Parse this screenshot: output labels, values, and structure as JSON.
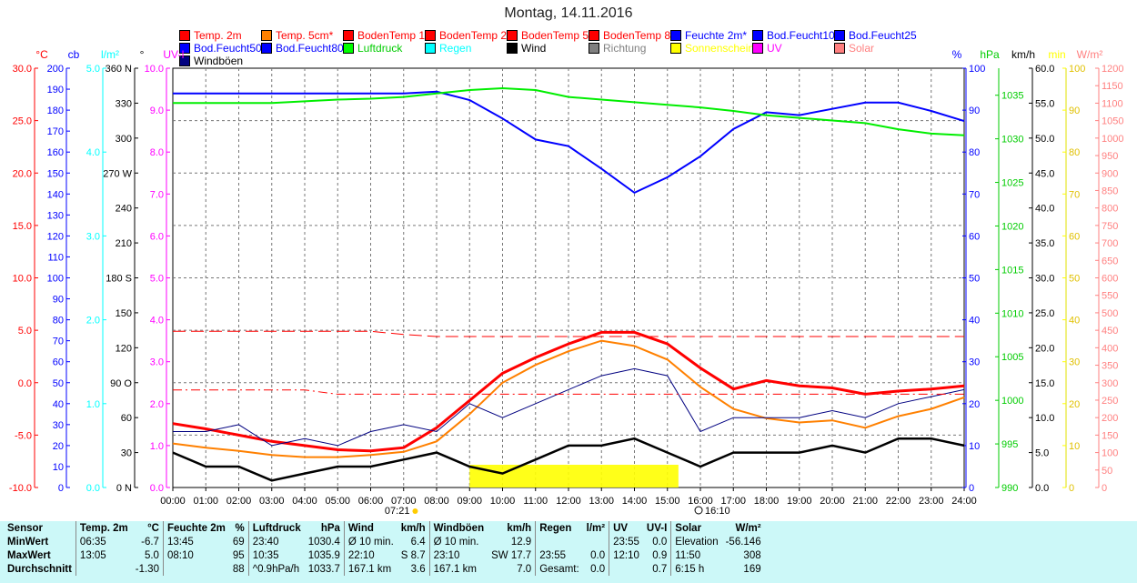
{
  "title": "Montag, 14.11.2016",
  "legend": [
    {
      "label": "Temp. 2m",
      "color": "#ff0000",
      "text": "#ff0000"
    },
    {
      "label": "Temp. 5cm*",
      "color": "#ff8000",
      "text": "#ff0000"
    },
    {
      "label": "BodenTemp 10",
      "color": "#ff0000",
      "text": "#ff0000"
    },
    {
      "label": "BodenTemp 25",
      "color": "#ff0000",
      "text": "#ff0000"
    },
    {
      "label": "BodenTemp 50",
      "color": "#ff0000",
      "text": "#ff0000"
    },
    {
      "label": "BodenTemp 80",
      "color": "#ff0000",
      "text": "#ff0000"
    },
    {
      "label": "Feuchte 2m*",
      "color": "#0000ff",
      "text": "#0000ff"
    },
    {
      "label": "Bod.Feucht10",
      "color": "#0000ff",
      "text": "#0000ff"
    },
    {
      "label": "Bod.Feucht25",
      "color": "#0000ff",
      "text": "#0000ff"
    },
    {
      "label": "Bod.Feucht50",
      "color": "#0000ff",
      "text": "#0000ff"
    },
    {
      "label": "Bod.Feucht80",
      "color": "#0000ff",
      "text": "#0000ff"
    },
    {
      "label": "Luftdruck",
      "color": "#00ff00",
      "text": "#00cc00"
    },
    {
      "label": "Regen",
      "color": "#00ffff",
      "text": "#00ffff"
    },
    {
      "label": "Wind",
      "color": "#000000",
      "text": "#000000"
    },
    {
      "label": "Richtung",
      "color": "#808080",
      "text": "#808080"
    },
    {
      "label": "Sonnenschein",
      "color": "#ffff00",
      "text": "#ffff00"
    },
    {
      "label": "UV",
      "color": "#ff00ff",
      "text": "#ff00ff"
    },
    {
      "label": "Solar",
      "color": "#ff8080",
      "text": "#ff8080"
    },
    {
      "label": "Windböen",
      "color": "#000080",
      "text": "#000000"
    }
  ],
  "chart_data": {
    "type": "line",
    "title": "Montag, 14.11.2016",
    "x": [
      "00:00",
      "01:00",
      "02:00",
      "03:00",
      "04:00",
      "05:00",
      "06:00",
      "07:00",
      "08:00",
      "09:00",
      "10:00",
      "11:00",
      "12:00",
      "13:00",
      "14:00",
      "15:00",
      "16:00",
      "17:00",
      "18:00",
      "19:00",
      "20:00",
      "21:00",
      "22:00",
      "23:00",
      "24:00"
    ],
    "axes": {
      "left": [
        {
          "unit": "°C",
          "color": "#ff0000",
          "range": [
            -10,
            30
          ],
          "step": 5,
          "dec": 1
        },
        {
          "unit": "cb",
          "color": "#0000ff",
          "range": [
            0,
            200
          ],
          "step": 10,
          "dec": 0
        },
        {
          "unit": "l/m²",
          "color": "#00ffff",
          "range": [
            0,
            5
          ],
          "step": 1,
          "dec": 1
        },
        {
          "unit": "°",
          "color": "#000000",
          "range": [
            0,
            360
          ],
          "step": 30,
          "dec": 0,
          "labels": [
            "0 N",
            "30",
            "60",
            "90  O",
            "120",
            "150",
            "180 S",
            "210",
            "240",
            "270 W",
            "300",
            "330",
            "360 N"
          ]
        },
        {
          "unit": "UV-I",
          "color": "#ff00ff",
          "range": [
            0,
            10
          ],
          "step": 1,
          "dec": 1
        }
      ],
      "right": [
        {
          "unit": "%",
          "color": "#0000ff",
          "range": [
            0,
            100
          ],
          "step": 10,
          "dec": 0
        },
        {
          "unit": "hPa",
          "color": "#00cc00",
          "range": [
            990,
            1038.1
          ],
          "step": 5,
          "dec": 0
        },
        {
          "unit": "km/h",
          "color": "#000000",
          "range": [
            0,
            60
          ],
          "step": 5,
          "dec": 1
        },
        {
          "unit": "min",
          "color": "#ffff00",
          "range": [
            0,
            100
          ],
          "step": 10,
          "dec": 0
        },
        {
          "unit": "W/m²",
          "color": "#ff8080",
          "range": [
            0,
            1200
          ],
          "step": 50,
          "dec": 0
        }
      ]
    },
    "series": [
      {
        "name": "Temp. 2m",
        "axis": "°C",
        "color": "#ff0000",
        "width": 3,
        "values": [
          -3.9,
          -4.4,
          -5,
          -5.6,
          -6,
          -6.4,
          -6.5,
          -6.2,
          -4.3,
          -1.7,
          0.9,
          2.4,
          3.7,
          4.8,
          4.8,
          3.7,
          1.4,
          -0.6,
          0.2,
          -0.3,
          -0.5,
          -1.1,
          -0.8,
          -0.6,
          -0.3
        ]
      },
      {
        "name": "Temp. 5cm*",
        "axis": "°C",
        "color": "#ff8000",
        "width": 2,
        "values": [
          -5.8,
          -6.2,
          -6.5,
          -6.9,
          -7.1,
          -7.1,
          -6.9,
          -6.6,
          -5.6,
          -3,
          0,
          1.7,
          3,
          4,
          3.5,
          2.2,
          -0.4,
          -2.5,
          -3.4,
          -3.8,
          -3.6,
          -4.3,
          -3.2,
          -2.5,
          -1.4
        ]
      },
      {
        "name": "Feuchte 2m*",
        "axis": "%",
        "color": "#0000ff",
        "width": 2,
        "values": [
          94,
          94,
          94,
          94,
          94,
          94,
          94,
          94,
          94.4,
          92.4,
          88,
          83,
          81.4,
          76,
          70.3,
          74,
          79,
          85.5,
          89.5,
          88.8,
          90.3,
          91.8,
          91.8,
          89.8,
          87.4
        ]
      },
      {
        "name": "Luftdruck",
        "axis": "hPa",
        "color": "#00ee00",
        "width": 2,
        "values": [
          1034.1,
          1034.1,
          1034.1,
          1034.1,
          1034.3,
          1034.5,
          1034.6,
          1034.8,
          1035.2,
          1035.6,
          1035.8,
          1035.6,
          1034.8,
          1034.5,
          1034.2,
          1033.9,
          1033.6,
          1033.2,
          1032.7,
          1032.4,
          1032.1,
          1031.8,
          1031.1,
          1030.6,
          1030.4
        ]
      },
      {
        "name": "Windböen",
        "axis": "km/h",
        "color": "#000080",
        "width": 1,
        "values": [
          8,
          8,
          9,
          6,
          7,
          6,
          8,
          9,
          8,
          12,
          10,
          12,
          14,
          16,
          17,
          16,
          8,
          10,
          10,
          10,
          11,
          10,
          12,
          13,
          14
        ]
      },
      {
        "name": "Wind",
        "axis": "km/h",
        "color": "#000000",
        "width": 2.5,
        "values": [
          5,
          3,
          3,
          1,
          2,
          3,
          3,
          4,
          5,
          3,
          2,
          4,
          6,
          6,
          7,
          5,
          3,
          5,
          5,
          5,
          6,
          5,
          7,
          7,
          6
        ]
      },
      {
        "name": "BodenTemp 10",
        "axis": "°C",
        "color": "#ff0000",
        "width": 1,
        "dash": "10 4 2 4",
        "values": [
          -0.7,
          -0.7,
          -0.7,
          -0.7,
          -0.7,
          -1.1,
          -1.1,
          -1.1,
          -1.1,
          -1.1,
          -1.1,
          -1.1,
          -1.1,
          -1.1,
          -1.1,
          -1.1,
          -1.1,
          -1.1,
          -1.1,
          -1.1,
          -1.1,
          -1.1,
          -1.1,
          -1.1,
          -1.1
        ]
      },
      {
        "name": "BodenTemp 25",
        "axis": "°C",
        "color": "#ff0000",
        "width": 1,
        "dash": "14 6",
        "values": [
          4.9,
          4.9,
          4.9,
          4.9,
          4.9,
          4.9,
          4.9,
          4.6,
          4.4,
          4.4,
          4.4,
          4.4,
          4.4,
          4.4,
          4.4,
          4.4,
          4.4,
          4.4,
          4.4,
          4.4,
          4.4,
          4.4,
          4.4,
          4.4,
          4.4
        ]
      }
    ],
    "sunshine": {
      "from": "09:00",
      "to": "15:20",
      "label": "Sonnenschein"
    },
    "sunrise": "07:21",
    "sunset": "16:10"
  },
  "footer": {
    "headers": [
      "Sensor",
      "Temp. 2m",
      "°C",
      "Feuchte 2m",
      "%",
      "Luftdruck",
      "hPa",
      "Wind",
      "km/h",
      "Windböen",
      "km/h",
      "Regen",
      "l/m²",
      "UV",
      "UV-I",
      "Solar",
      "W/m²"
    ],
    "rows": [
      [
        "MinWert",
        "06:35",
        "-6.7",
        "13:45",
        "69",
        "23:40",
        "1030.4",
        "Ø 10 min.",
        "6.4",
        "Ø 10 min.",
        "12.9",
        "",
        "",
        "23:55",
        "0.0",
        "Elevation",
        "-56.146"
      ],
      [
        "MaxWert",
        "13:05",
        "5.0",
        "08:10",
        "95",
        "10:35",
        "1035.9",
        "22:10",
        "S 8.7",
        "23:10",
        "SW 17.7",
        "23:55",
        "0.0",
        "12:10",
        "0.9",
        "11:50",
        "308"
      ],
      [
        "Durchschnitt",
        "",
        "-1.30",
        "",
        "88",
        "^0.9hPa/h",
        "1033.7",
        "167.1 km",
        "3.6",
        "167.1 km",
        "7.0",
        "Gesamt:",
        "0.0",
        "",
        "0.7",
        "6:15 h",
        "169"
      ]
    ]
  }
}
